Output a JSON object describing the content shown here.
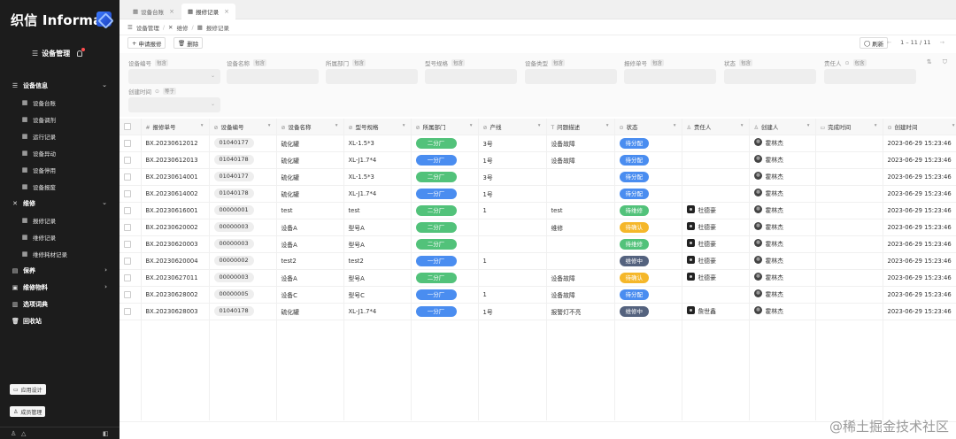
{
  "sidebar": {
    "logo_text": "织信 Informat",
    "app_title": "设备管理",
    "groups": [
      {
        "label": "设备信息",
        "icon": "list-icon",
        "chevron": "⌄",
        "items": [
          "设备台账",
          "设备调剂",
          "运行记录",
          "设备异动",
          "设备停用",
          "设备报废"
        ]
      },
      {
        "label": "维修",
        "icon": "tools-icon",
        "chevron": "⌄",
        "items": [
          "报修记录",
          "维修记录",
          "维修耗材记录"
        ]
      },
      {
        "label": "保养",
        "icon": "document-icon",
        "chevron": "›",
        "items": []
      },
      {
        "label": "维修物料",
        "icon": "box-icon",
        "chevron": "›",
        "items": []
      },
      {
        "label": "选项词典",
        "icon": "book-icon",
        "chevron": "",
        "items": []
      },
      {
        "label": "回收站",
        "icon": "trash-icon",
        "chevron": "",
        "items": []
      }
    ],
    "app_design_label": "应用设计",
    "member_mgmt_label": "成员管理"
  },
  "tabs": [
    {
      "label": "设备台账",
      "active": false
    },
    {
      "label": "报修记录",
      "active": true
    }
  ],
  "breadcrumb": [
    "设备管理",
    "维修",
    "报修记录"
  ],
  "toolbar": {
    "apply_label": "申请报修",
    "delete_label": "删除",
    "refresh_label": "刷新",
    "pager_text": "1 – 11 / 11"
  },
  "filters": [
    {
      "label": "设备编号",
      "op": "包含"
    },
    {
      "label": "设备名称",
      "op": "包含"
    },
    {
      "label": "所属部门",
      "op": "包含"
    },
    {
      "label": "型号规格",
      "op": "包含"
    },
    {
      "label": "设备类型",
      "op": "包含"
    },
    {
      "label": "报修单号",
      "op": "包含"
    },
    {
      "label": "状态",
      "op": "包含"
    },
    {
      "label": "责任人",
      "op": "包含"
    },
    {
      "label": "创建时间",
      "op": "等于"
    }
  ],
  "columns": [
    "报修单号",
    "设备编号",
    "设备名称",
    "型号规格",
    "所属部门",
    "产线",
    "问题描述",
    "状态",
    "责任人",
    "创建人",
    "完成时间",
    "创建时间"
  ],
  "colors": {
    "dept_green": "#52c27a",
    "dept_blue": "#4a8df0",
    "status_blue": "#4a8df0",
    "status_green": "#52c27a",
    "status_orange": "#f5b72a",
    "status_navy": "#54627e"
  },
  "rows": [
    {
      "no": "BX.20230612012",
      "code": "01040177",
      "name": "硫化罐",
      "model": "XL-1.5*3",
      "dept": "二分厂",
      "dept_color": "#52c27a",
      "line": "3号",
      "issue": "设备故障",
      "status": "待分配",
      "status_color": "#4a8df0",
      "owner": "",
      "creator": "霍林杰",
      "done": "",
      "created": "2023-06-29 15:23:46"
    },
    {
      "no": "BX.20230612013",
      "code": "01040178",
      "name": "硫化罐",
      "model": "XL-J1.7*4",
      "dept": "一分厂",
      "dept_color": "#4a8df0",
      "line": "1号",
      "issue": "设备故障",
      "status": "待分配",
      "status_color": "#4a8df0",
      "owner": "",
      "creator": "霍林杰",
      "done": "",
      "created": "2023-06-29 15:23:46"
    },
    {
      "no": "BX.20230614001",
      "code": "01040177",
      "name": "硫化罐",
      "model": "XL-1.5*3",
      "dept": "二分厂",
      "dept_color": "#52c27a",
      "line": "3号",
      "issue": "",
      "status": "待分配",
      "status_color": "#4a8df0",
      "owner": "",
      "creator": "霍林杰",
      "done": "",
      "created": "2023-06-29 15:23:46"
    },
    {
      "no": "BX.20230614002",
      "code": "01040178",
      "name": "硫化罐",
      "model": "XL-J1.7*4",
      "dept": "一分厂",
      "dept_color": "#4a8df0",
      "line": "1号",
      "issue": "",
      "status": "待分配",
      "status_color": "#4a8df0",
      "owner": "",
      "creator": "霍林杰",
      "done": "",
      "created": "2023-06-29 15:23:46"
    },
    {
      "no": "BX.20230616001",
      "code": "00000001",
      "name": "test",
      "model": "test",
      "dept": "二分厂",
      "dept_color": "#52c27a",
      "line": "1",
      "issue": "test",
      "status": "待维修",
      "status_color": "#52c27a",
      "owner": "杜德豪",
      "creator": "霍林杰",
      "done": "",
      "created": "2023-06-29 15:23:46"
    },
    {
      "no": "BX.20230620002",
      "code": "00000003",
      "name": "设备A",
      "model": "型号A",
      "dept": "二分厂",
      "dept_color": "#52c27a",
      "line": "",
      "issue": "维修",
      "status": "待确认",
      "status_color": "#f5b72a",
      "owner": "杜德豪",
      "creator": "霍林杰",
      "done": "",
      "created": "2023-06-29 15:23:46"
    },
    {
      "no": "BX.20230620003",
      "code": "00000003",
      "name": "设备A",
      "model": "型号A",
      "dept": "二分厂",
      "dept_color": "#52c27a",
      "line": "",
      "issue": "",
      "status": "待维修",
      "status_color": "#52c27a",
      "owner": "杜德豪",
      "creator": "霍林杰",
      "done": "",
      "created": "2023-06-29 15:23:46"
    },
    {
      "no": "BX.20230620004",
      "code": "00000002",
      "name": "test2",
      "model": "test2",
      "dept": "一分厂",
      "dept_color": "#4a8df0",
      "line": "1",
      "issue": "",
      "status": "维修中",
      "status_color": "#54627e",
      "owner": "杜德豪",
      "creator": "霍林杰",
      "done": "",
      "created": "2023-06-29 15:23:46"
    },
    {
      "no": "BX.20230627011",
      "code": "00000003",
      "name": "设备A",
      "model": "型号A",
      "dept": "二分厂",
      "dept_color": "#52c27a",
      "line": "",
      "issue": "设备故障",
      "status": "待确认",
      "status_color": "#f5b72a",
      "owner": "杜德豪",
      "creator": "霍林杰",
      "done": "",
      "created": "2023-06-29 15:23:46"
    },
    {
      "no": "BX.20230628002",
      "code": "00000005",
      "name": "设备C",
      "model": "型号C",
      "dept": "一分厂",
      "dept_color": "#4a8df0",
      "line": "1",
      "issue": "设备故障",
      "status": "待分配",
      "status_color": "#4a8df0",
      "owner": "",
      "creator": "霍林杰",
      "done": "",
      "created": "2023-06-29 15:23:46"
    },
    {
      "no": "BX.20230628003",
      "code": "01040178",
      "name": "硫化罐",
      "model": "XL-J1.7*4",
      "dept": "一分厂",
      "dept_color": "#4a8df0",
      "line": "1号",
      "issue": "报警灯不亮",
      "status": "维修中",
      "status_color": "#54627e",
      "owner": "詹世鑫",
      "creator": "霍林杰",
      "done": "",
      "created": "2023-06-29 15:23:46"
    }
  ],
  "watermark": "@稀土掘金技术社区"
}
